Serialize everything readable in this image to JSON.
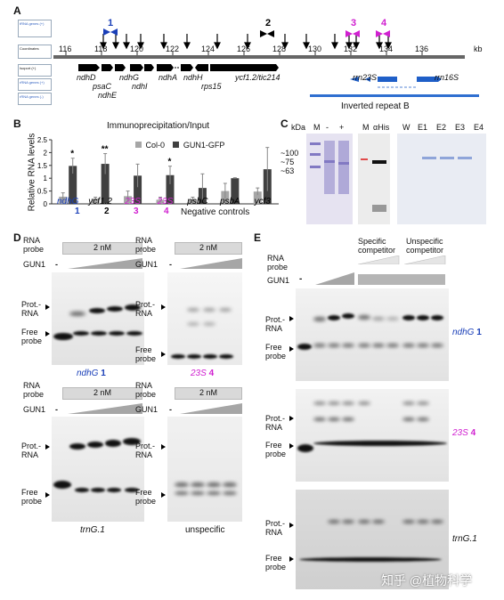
{
  "panelA": {
    "label": "A",
    "track_labels": [
      "tRNA genes (+)",
      "Coordinates",
      "Isoport (+)",
      "rRNA genes (+)",
      "rRNA genes (-)"
    ],
    "axis_ticks": [
      "116",
      "118",
      "120",
      "122",
      "124",
      "126",
      "128",
      "130",
      "132",
      "134",
      "136"
    ],
    "axis_unit": "kb",
    "probe_numbers": [
      "1",
      "2",
      "3",
      "4"
    ],
    "gene_labels": [
      "ndhD",
      "psaC",
      "ndhE",
      "ndhG",
      "ndhI",
      "ndhA",
      "ndhH",
      "rps15",
      "ycf1.2/tic214",
      "rrn23S",
      "rrn16S"
    ],
    "region_label": "Inverted repeat B"
  },
  "panelB": {
    "label": "B",
    "colors": {
      "col0": "#a6a6a6",
      "gun1": "#404040"
    },
    "sig_marks": [
      "*",
      "**",
      "*"
    ],
    "group_numbers": [
      "1",
      "2",
      "3",
      "4"
    ],
    "negative_label": "Negative controls"
  },
  "panelC": {
    "label": "C",
    "kda_label": "kDa",
    "markers": [
      "~100",
      "~75",
      "~63"
    ],
    "lanes_1": [
      "M",
      "-",
      "+"
    ],
    "lanes_2": [
      "M",
      "αHis"
    ],
    "lanes_3": [
      "W",
      "E1",
      "E2",
      "E3",
      "E4"
    ]
  },
  "panelD": {
    "label": "D",
    "rna_probe": "RNA\nprobe",
    "conc": "2 nM",
    "gun1": "GUN1",
    "minus": "-",
    "prot_rna": "Prot.-\nRNA",
    "free_probe": "Free\nprobe",
    "gel_labels": [
      "ndhG",
      "1",
      "23S",
      "4",
      "trnG.1",
      "unspecific"
    ]
  },
  "panelE": {
    "label": "E",
    "rna_probe": "RNA\nprobe",
    "gun1": "GUN1",
    "minus": "-",
    "specific": "Specific\ncompetitor",
    "unspecific": "Unspecific\ncompetitor",
    "prot_rna": "Prot.-\nRNA",
    "free_probe": "Free\nprobe",
    "gel_labels": [
      "ndhG",
      "1",
      "23S",
      "4",
      "trnG.1"
    ]
  },
  "watermark": "知乎 @植物科学",
  "chart_data": {
    "type": "bar",
    "title": "Immunoprecipitation/Input",
    "ylabel": "Relative RNA levels",
    "ylim": [
      0,
      2.5
    ],
    "yticks": [
      "0",
      "0.5",
      "1",
      "1.5",
      "2",
      "2.5"
    ],
    "categories": [
      "ndhG",
      "ycf1.2",
      "23S",
      "23S",
      "psbC",
      "psbA",
      "ycf3"
    ],
    "legend_placement": "top-right",
    "series": [
      {
        "name": "Col-0",
        "values": [
          0.28,
          0.2,
          0.3,
          0.16,
          0.18,
          0.5,
          0.48
        ],
        "errors": [
          0.15,
          0.06,
          0.2,
          0.1,
          0.08,
          0.3,
          0.14
        ]
      },
      {
        "name": "GUN1-GFP",
        "values": [
          1.48,
          1.56,
          1.1,
          1.12,
          0.62,
          1.0,
          1.35
        ],
        "errors": [
          0.3,
          0.4,
          0.45,
          0.35,
          0.55,
          0.02,
          0.85
        ]
      }
    ]
  }
}
